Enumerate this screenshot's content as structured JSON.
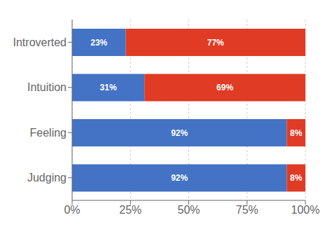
{
  "chart_data": {
    "type": "bar",
    "orientation": "horizontal",
    "stacked": true,
    "categories": [
      "Introverted",
      "Intuition",
      "Feeling",
      "Judging"
    ],
    "series": [
      {
        "color": "#4472C4",
        "values": [
          23,
          31,
          92,
          92
        ],
        "value_labels": [
          "23%",
          "31%",
          "92%",
          "92%"
        ]
      },
      {
        "color": "#E03B24",
        "values": [
          77,
          69,
          8,
          8
        ],
        "value_labels": [
          "77%",
          "69%",
          "8%",
          "8%"
        ]
      }
    ],
    "xlim": [
      0,
      100
    ],
    "xticks": [
      {
        "value": 0,
        "label": "0%"
      },
      {
        "value": 25,
        "label": "25%"
      },
      {
        "value": 50,
        "label": "50%"
      },
      {
        "value": 75,
        "label": "75%"
      },
      {
        "value": 100,
        "label": "100%"
      }
    ],
    "grid": "x",
    "data_labels": true
  }
}
